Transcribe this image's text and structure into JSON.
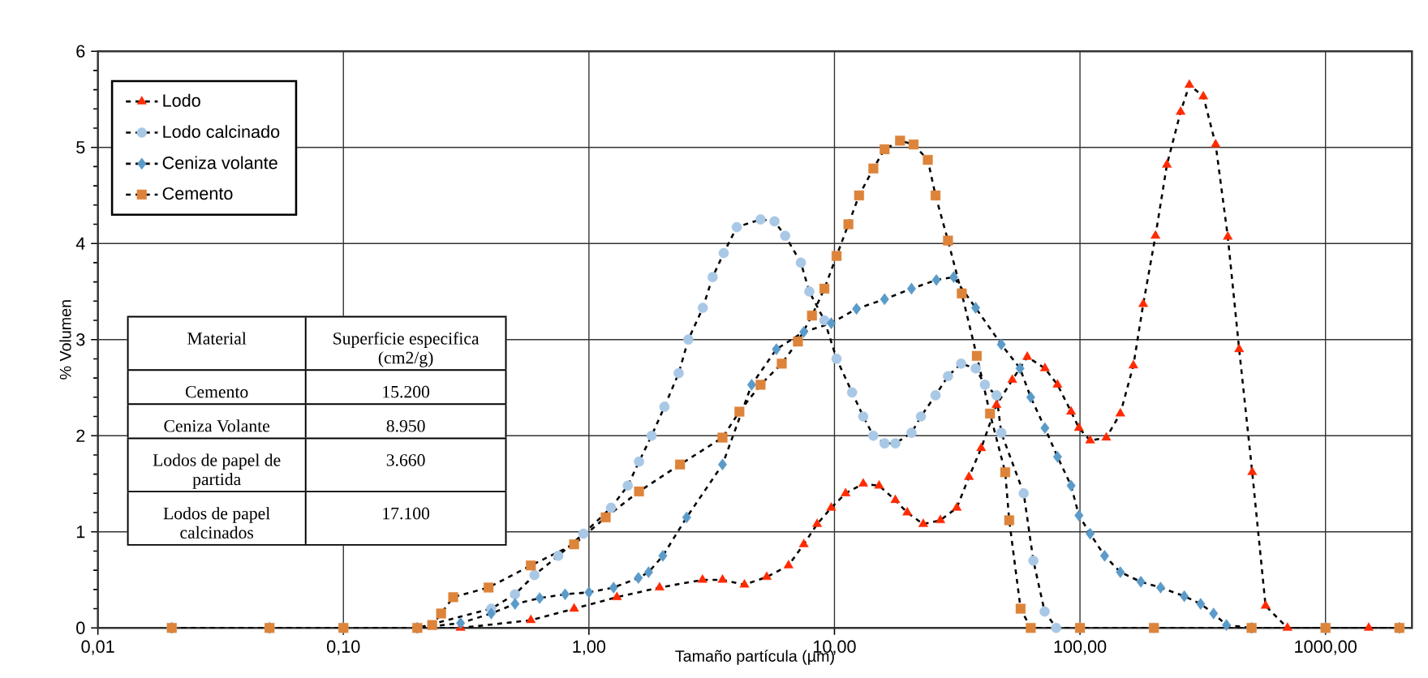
{
  "chart_data": {
    "type": "line",
    "xlabel": "Tamaño partícula (µm)",
    "ylabel": "% Volumen",
    "log": "x",
    "grid": true,
    "legend": "top left",
    "line_style": "dashed",
    "xlim": [
      0.01,
      2250
    ],
    "ylim": [
      0,
      6
    ],
    "xticks": [
      {
        "value": 0.01,
        "label": "0,01"
      },
      {
        "value": 0.1,
        "label": "0,10"
      },
      {
        "value": 1,
        "label": "1,00"
      },
      {
        "value": 10,
        "label": "10,00"
      },
      {
        "value": 100,
        "label": "100,00"
      },
      {
        "value": 1000,
        "label": "1000,00"
      }
    ],
    "yticks": [
      0,
      1,
      2,
      3,
      4,
      5,
      6
    ],
    "series": [
      {
        "name": "Lodo",
        "color": "#ff2a00",
        "marker": "triangle",
        "x": [
          0.02,
          0.05,
          0.1,
          0.2,
          0.3,
          0.58,
          0.87,
          1.3,
          1.94,
          2.9,
          3.5,
          4.3,
          5.3,
          6.5,
          7.5,
          8.5,
          9.7,
          11.1,
          13.1,
          15.2,
          17.7,
          19.8,
          23,
          27,
          31.5,
          35.3,
          39.6,
          45.7,
          53,
          61,
          72,
          81,
          92,
          99,
          110,
          128,
          146,
          165,
          181,
          203,
          226,
          257,
          279,
          318,
          357,
          400,
          445,
          503,
          570,
          700,
          1000,
          1500,
          2000
        ],
        "values": [
          0,
          0,
          0,
          0,
          0,
          0.08,
          0.2,
          0.32,
          0.42,
          0.5,
          0.5,
          0.45,
          0.53,
          0.65,
          0.87,
          1.08,
          1.25,
          1.4,
          1.5,
          1.48,
          1.33,
          1.2,
          1.08,
          1.12,
          1.25,
          1.57,
          1.87,
          2.32,
          2.58,
          2.82,
          2.7,
          2.53,
          2.25,
          2.08,
          1.95,
          1.98,
          2.23,
          2.73,
          3.37,
          4.08,
          4.82,
          5.37,
          5.65,
          5.53,
          5.03,
          4.07,
          2.9,
          1.62,
          0.23,
          0,
          0,
          0,
          0
        ]
      },
      {
        "name": "Lodo calcinado",
        "color": "#a9c8e6",
        "marker": "circle",
        "x": [
          0.02,
          0.05,
          0.1,
          0.2,
          0.3,
          0.4,
          0.5,
          0.6,
          0.75,
          0.95,
          1.23,
          1.44,
          1.6,
          1.8,
          2.03,
          2.32,
          2.54,
          2.91,
          3.19,
          3.54,
          4.0,
          5.0,
          5.7,
          6.3,
          7.3,
          7.9,
          9.1,
          10.2,
          11.8,
          13.1,
          14.4,
          16,
          17.7,
          20.6,
          22.5,
          25.8,
          29,
          32.8,
          37.6,
          41,
          45.7,
          47.8,
          59,
          64.6,
          71.8,
          80,
          100,
          200,
          500,
          1000,
          2000
        ],
        "values": [
          0,
          0,
          0,
          0,
          null,
          0.2,
          0.35,
          0.55,
          0.75,
          0.98,
          1.25,
          1.48,
          1.73,
          2.0,
          2.3,
          2.65,
          3.0,
          3.33,
          3.65,
          3.9,
          4.17,
          4.25,
          4.23,
          4.08,
          3.8,
          3.5,
          3.2,
          2.8,
          2.45,
          2.2,
          2.0,
          1.92,
          1.92,
          2.03,
          2.2,
          2.42,
          2.62,
          2.75,
          2.7,
          2.53,
          2.42,
          2.03,
          1.4,
          0.7,
          0.17,
          0,
          0,
          0,
          0,
          0,
          0
        ]
      },
      {
        "name": "Ceniza volante",
        "color": "#5b9bc9",
        "marker": "diamond",
        "x": [
          0.02,
          0.05,
          0.1,
          0.2,
          0.3,
          0.4,
          0.5,
          0.63,
          0.8,
          1.0,
          1.26,
          1.59,
          1.75,
          2.0,
          2.5,
          3.5,
          4.6,
          5.8,
          7.5,
          9.7,
          12.3,
          16,
          20.6,
          26,
          30.6,
          37.6,
          47.8,
          57,
          63,
          72,
          81,
          92,
          99,
          110,
          126,
          146,
          177,
          213,
          266,
          310,
          350,
          395,
          500,
          1000,
          2000
        ],
        "values": [
          0,
          0,
          0,
          0,
          0.05,
          0.15,
          0.25,
          0.31,
          0.35,
          0.37,
          0.42,
          0.52,
          0.58,
          0.75,
          1.15,
          1.7,
          2.53,
          2.9,
          3.08,
          3.17,
          3.32,
          3.42,
          3.53,
          3.62,
          3.65,
          3.33,
          2.95,
          2.7,
          2.4,
          2.08,
          1.78,
          1.48,
          1.17,
          0.98,
          0.75,
          0.58,
          0.48,
          0.42,
          0.33,
          0.25,
          0.15,
          0.03,
          0,
          0,
          0
        ]
      },
      {
        "name": "Cemento",
        "color": "#dd843a",
        "marker": "square",
        "x": [
          0.02,
          0.05,
          0.1,
          0.2,
          0.23,
          0.25,
          0.28,
          0.39,
          0.58,
          0.87,
          1.17,
          1.6,
          2.35,
          3.5,
          4.1,
          5,
          6.1,
          7.1,
          8.1,
          9.1,
          10.2,
          11.4,
          12.6,
          14.4,
          16,
          18.5,
          21,
          24,
          25.8,
          29,
          33,
          38,
          43,
          49.6,
          51.5,
          57.3,
          63,
          100,
          200,
          500,
          1000,
          2000
        ],
        "values": [
          0,
          0,
          0,
          0,
          0.03,
          0.15,
          0.32,
          0.42,
          0.65,
          0.87,
          1.15,
          1.42,
          1.7,
          1.98,
          2.25,
          2.53,
          2.75,
          2.98,
          3.25,
          3.53,
          3.87,
          4.2,
          4.5,
          4.78,
          4.98,
          5.07,
          5.03,
          4.87,
          4.5,
          4.03,
          3.48,
          2.83,
          2.23,
          1.62,
          1.12,
          0.2,
          0,
          0,
          0,
          0,
          0,
          0
        ]
      }
    ],
    "annotations": [
      "Material",
      "Superficie especifica (cm2/g)",
      "Cemento",
      "15.200",
      "Ceniza Volante",
      "8.950",
      "Lodos de papel de partida",
      "3.660",
      "Lodos de papel calcinados",
      "17.100"
    ]
  }
}
